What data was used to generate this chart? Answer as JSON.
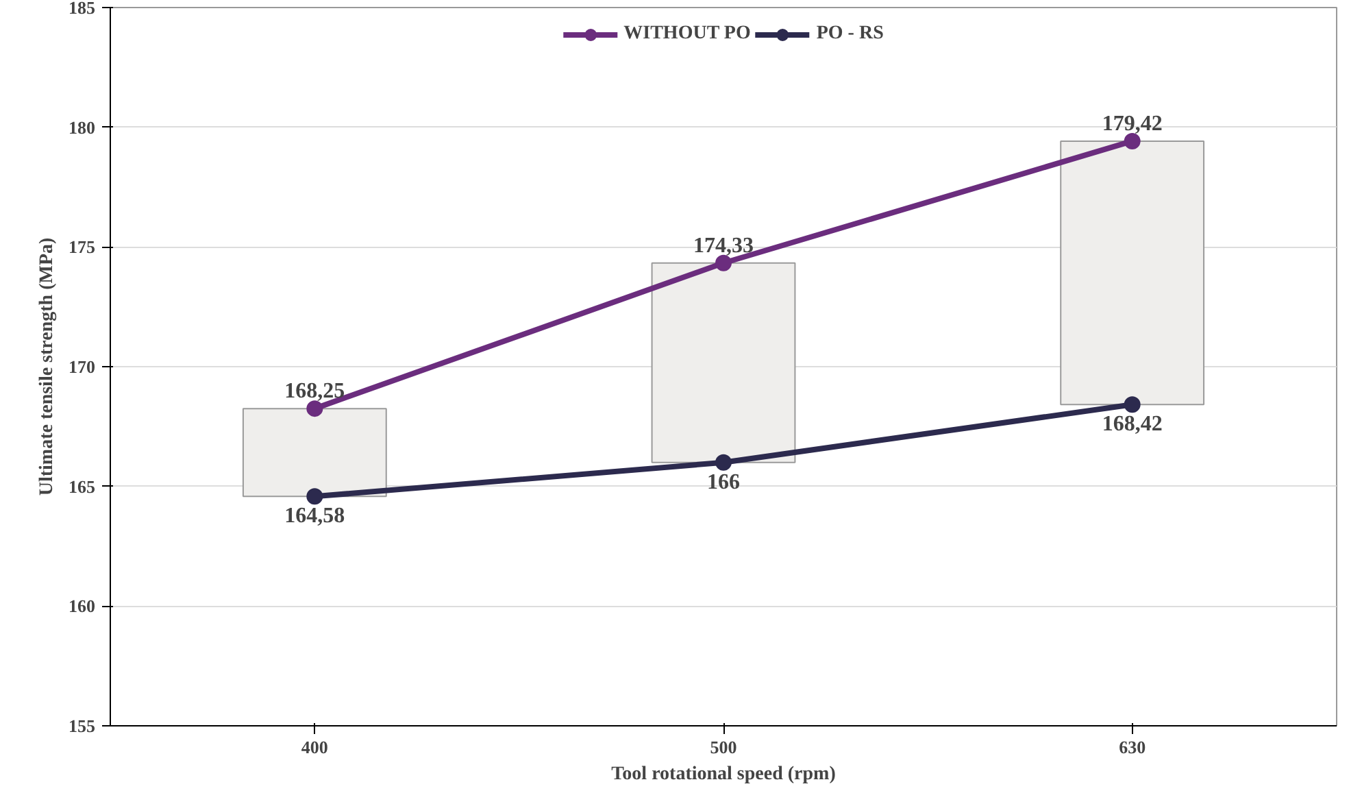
{
  "chart_data": {
    "type": "line",
    "xlabel": "Tool rotational speed (rpm)",
    "ylabel": "Ultimate tensile strength (MPa)",
    "categories": [
      "400",
      "500",
      "630"
    ],
    "series": [
      {
        "type": "bar",
        "color": "#efeeec",
        "base": [
          164.58,
          166,
          168.42
        ],
        "values": [
          3.67,
          8.33,
          11.0
        ]
      },
      {
        "name": "WITHOUT PO",
        "color": "#6b2d7e",
        "values": [
          168.25,
          174.33,
          179.42
        ],
        "value_labels": [
          "168,25",
          "174,33",
          "179,42"
        ]
      },
      {
        "name": "PO - RS",
        "color": "#2c2a4e",
        "values": [
          164.58,
          166,
          168.42
        ],
        "value_labels": [
          "164,58",
          "166",
          "168,42"
        ]
      }
    ],
    "ylim": [
      155,
      185
    ],
    "yticks": [
      155,
      160,
      165,
      170,
      175,
      180,
      185
    ],
    "grid": "y",
    "legend": "top",
    "marker": "circle",
    "line_style": "solid"
  }
}
